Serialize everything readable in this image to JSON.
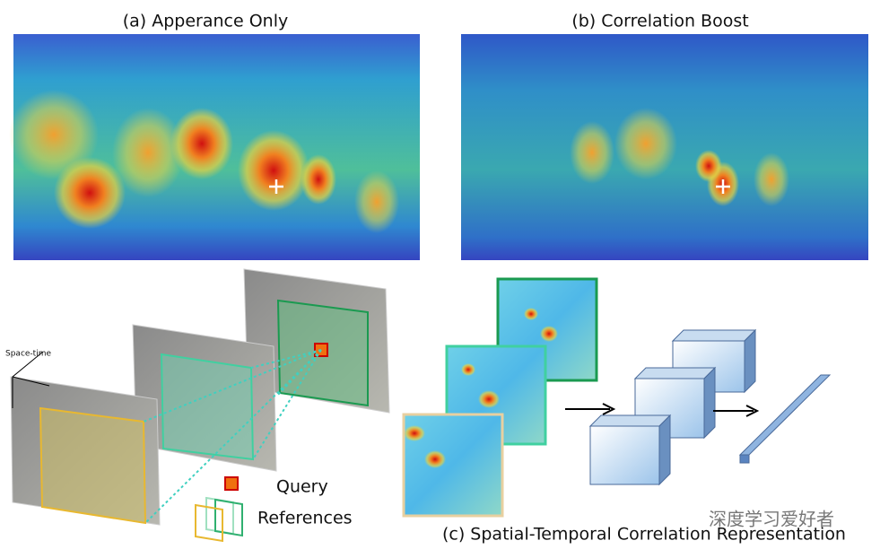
{
  "panel_a": {
    "title": "(a) Apperance Only"
  },
  "panel_b": {
    "title": "(b) Correlation Boost"
  },
  "panel_c": {
    "axis_label": "Space-time",
    "legend": {
      "query": "Query",
      "references": "References"
    },
    "caption": "(c) Spatial-Temporal Correlation Representation"
  },
  "watermark": "深度学习爱好者"
}
